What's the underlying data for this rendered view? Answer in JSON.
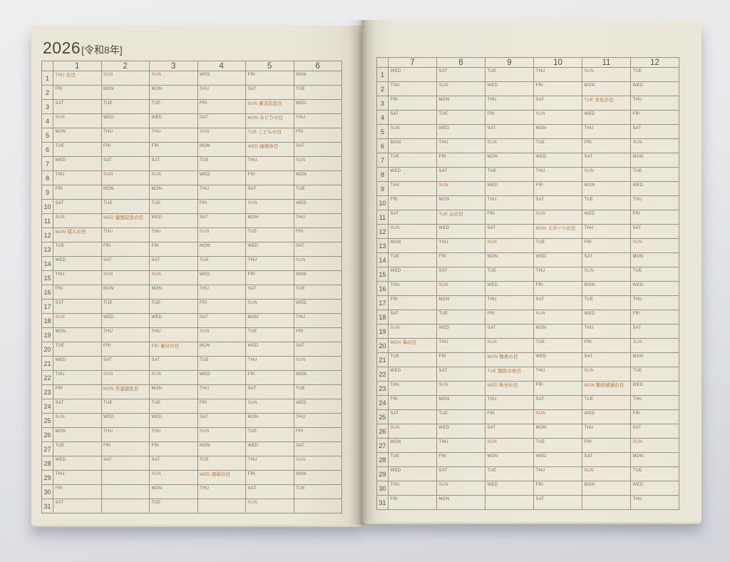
{
  "title": {
    "year": "2026",
    "era_label": "[令和8年]"
  },
  "colors": {
    "holiday_accent": "#b5713a",
    "weekday_text": "#6f6a5e",
    "grid_line": "#8a8270",
    "page_paper": "#eae7d9",
    "desk_background": "#dddee2"
  },
  "weekday_names": [
    "SUN",
    "MON",
    "TUE",
    "WED",
    "THU",
    "FRI",
    "SAT"
  ],
  "day_numbers": [
    "1",
    "2",
    "3",
    "4",
    "5",
    "6",
    "7",
    "8",
    "9",
    "10",
    "11",
    "12",
    "13",
    "14",
    "15",
    "16",
    "17",
    "18",
    "19",
    "20",
    "21",
    "22",
    "23",
    "24",
    "25",
    "26",
    "27",
    "28",
    "29",
    "30",
    "31"
  ],
  "pages": [
    {
      "name": "january-june",
      "month_headers": [
        "1",
        "2",
        "3",
        "4",
        "5",
        "6"
      ]
    },
    {
      "name": "july-december",
      "month_headers": [
        "7",
        "8",
        "9",
        "10",
        "11",
        "12"
      ]
    }
  ],
  "months": [
    {
      "label": "1",
      "dows": [
        "THU",
        "FRI",
        "SAT",
        "SUN",
        "MON",
        "TUE",
        "WED",
        "THU",
        "FRI",
        "SAT",
        "SUN",
        "MON",
        "TUE",
        "WED",
        "THU",
        "FRI",
        "SAT",
        "SUN",
        "MON",
        "TUE",
        "WED",
        "THU",
        "FRI",
        "SAT",
        "SUN",
        "MON",
        "TUE",
        "WED",
        "THU",
        "FRI",
        "SAT"
      ],
      "holidays": {
        "1": "元日",
        "12": "成人の日"
      }
    },
    {
      "label": "2",
      "dows": [
        "SUN",
        "MON",
        "TUE",
        "WED",
        "THU",
        "FRI",
        "SAT",
        "SUN",
        "MON",
        "TUE",
        "WED",
        "THU",
        "FRI",
        "SAT",
        "SUN",
        "MON",
        "TUE",
        "WED",
        "THU",
        "FRI",
        "SAT",
        "SUN",
        "MON",
        "TUE",
        "WED",
        "THU",
        "FRI",
        "SAT",
        "",
        "",
        ""
      ],
      "holidays": {
        "11": "建国記念の日",
        "23": "天皇誕生日"
      }
    },
    {
      "label": "3",
      "dows": [
        "SUN",
        "MON",
        "TUE",
        "WED",
        "THU",
        "FRI",
        "SAT",
        "SUN",
        "MON",
        "TUE",
        "WED",
        "THU",
        "FRI",
        "SAT",
        "SUN",
        "MON",
        "TUE",
        "WED",
        "THU",
        "FRI",
        "SAT",
        "SUN",
        "MON",
        "TUE",
        "WED",
        "THU",
        "FRI",
        "SAT",
        "SUN",
        "MON",
        "TUE"
      ],
      "holidays": {
        "20": "春分の日"
      }
    },
    {
      "label": "4",
      "dows": [
        "WED",
        "THU",
        "FRI",
        "SAT",
        "SUN",
        "MON",
        "TUE",
        "WED",
        "THU",
        "FRI",
        "SAT",
        "SUN",
        "MON",
        "TUE",
        "WED",
        "THU",
        "FRI",
        "SAT",
        "SUN",
        "MON",
        "TUE",
        "WED",
        "THU",
        "FRI",
        "SAT",
        "SUN",
        "MON",
        "TUE",
        "WED",
        "THU",
        ""
      ],
      "holidays": {
        "29": "昭和の日"
      }
    },
    {
      "label": "5",
      "dows": [
        "FRI",
        "SAT",
        "SUN",
        "MON",
        "TUE",
        "WED",
        "THU",
        "FRI",
        "SAT",
        "SUN",
        "MON",
        "TUE",
        "WED",
        "THU",
        "FRI",
        "SAT",
        "SUN",
        "MON",
        "TUE",
        "WED",
        "THU",
        "FRI",
        "SAT",
        "SUN",
        "MON",
        "TUE",
        "WED",
        "THU",
        "FRI",
        "SAT",
        "SUN"
      ],
      "holidays": {
        "3": "憲法記念日",
        "4": "みどりの日",
        "5": "こどもの日",
        "6": "振替休日"
      }
    },
    {
      "label": "6",
      "dows": [
        "MON",
        "TUE",
        "WED",
        "THU",
        "FRI",
        "SAT",
        "SUN",
        "MON",
        "TUE",
        "WED",
        "THU",
        "FRI",
        "SAT",
        "SUN",
        "MON",
        "TUE",
        "WED",
        "THU",
        "FRI",
        "SAT",
        "SUN",
        "MON",
        "TUE",
        "WED",
        "THU",
        "FRI",
        "SAT",
        "SUN",
        "MON",
        "TUE",
        ""
      ],
      "holidays": {}
    },
    {
      "label": "7",
      "dows": [
        "WED",
        "THU",
        "FRI",
        "SAT",
        "SUN",
        "MON",
        "TUE",
        "WED",
        "THU",
        "FRI",
        "SAT",
        "SUN",
        "MON",
        "TUE",
        "WED",
        "THU",
        "FRI",
        "SAT",
        "SUN",
        "MON",
        "TUE",
        "WED",
        "THU",
        "FRI",
        "SAT",
        "SUN",
        "MON",
        "TUE",
        "WED",
        "THU",
        "FRI"
      ],
      "holidays": {
        "20": "海の日"
      }
    },
    {
      "label": "8",
      "dows": [
        "SAT",
        "SUN",
        "MON",
        "TUE",
        "WED",
        "THU",
        "FRI",
        "SAT",
        "SUN",
        "MON",
        "TUE",
        "WED",
        "THU",
        "FRI",
        "SAT",
        "SUN",
        "MON",
        "TUE",
        "WED",
        "THU",
        "FRI",
        "SAT",
        "SUN",
        "MON",
        "TUE",
        "WED",
        "THU",
        "FRI",
        "SAT",
        "SUN",
        "MON"
      ],
      "holidays": {
        "11": "山の日"
      }
    },
    {
      "label": "9",
      "dows": [
        "TUE",
        "WED",
        "THU",
        "FRI",
        "SAT",
        "SUN",
        "MON",
        "TUE",
        "WED",
        "THU",
        "FRI",
        "SAT",
        "SUN",
        "MON",
        "TUE",
        "WED",
        "THU",
        "FRI",
        "SAT",
        "SUN",
        "MON",
        "TUE",
        "WED",
        "THU",
        "FRI",
        "SAT",
        "SUN",
        "MON",
        "TUE",
        "WED",
        ""
      ],
      "holidays": {
        "21": "敬老の日",
        "22": "国民の休日",
        "23": "秋分の日"
      }
    },
    {
      "label": "10",
      "dows": [
        "THU",
        "FRI",
        "SAT",
        "SUN",
        "MON",
        "TUE",
        "WED",
        "THU",
        "FRI",
        "SAT",
        "SUN",
        "MON",
        "TUE",
        "WED",
        "THU",
        "FRI",
        "SAT",
        "SUN",
        "MON",
        "TUE",
        "WED",
        "THU",
        "FRI",
        "SAT",
        "SUN",
        "MON",
        "TUE",
        "WED",
        "THU",
        "FRI",
        "SAT"
      ],
      "holidays": {
        "12": "スポーツの日"
      }
    },
    {
      "label": "11",
      "dows": [
        "SUN",
        "MON",
        "TUE",
        "WED",
        "THU",
        "FRI",
        "SAT",
        "SUN",
        "MON",
        "TUE",
        "WED",
        "THU",
        "FRI",
        "SAT",
        "SUN",
        "MON",
        "TUE",
        "WED",
        "THU",
        "FRI",
        "SAT",
        "SUN",
        "MON",
        "TUE",
        "WED",
        "THU",
        "FRI",
        "SAT",
        "SUN",
        "MON",
        ""
      ],
      "holidays": {
        "3": "文化の日",
        "23": "勤労感謝の日"
      }
    },
    {
      "label": "12",
      "dows": [
        "TUE",
        "WED",
        "THU",
        "FRI",
        "SAT",
        "SUN",
        "MON",
        "TUE",
        "WED",
        "THU",
        "FRI",
        "SAT",
        "SUN",
        "MON",
        "TUE",
        "WED",
        "THU",
        "FRI",
        "SAT",
        "SUN",
        "MON",
        "TUE",
        "WED",
        "THU",
        "FRI",
        "SAT",
        "SUN",
        "MON",
        "TUE",
        "WED",
        "THU"
      ],
      "holidays": {}
    }
  ]
}
